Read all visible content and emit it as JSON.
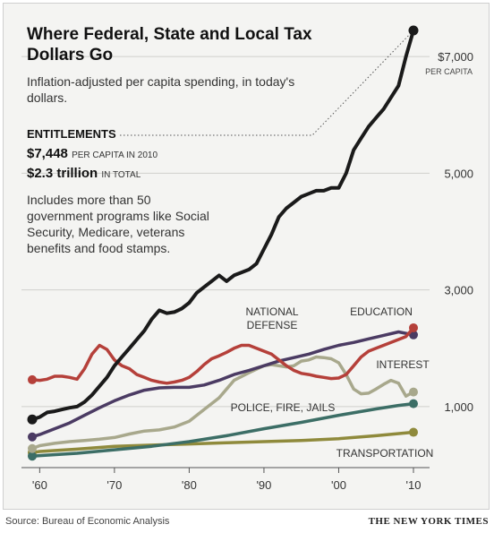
{
  "header": {
    "title": "Where Federal, State and Local Tax Dollars Go",
    "subtitle": "Inflation-adjusted per capita spending, in today's dollars."
  },
  "entitlements": {
    "label": "ENTITLEMENTS",
    "per_capita_value": "$7,448",
    "per_capita_note": "PER CAPITA IN 2010",
    "total_value": "$2.3 trillion",
    "total_note": "IN TOTAL",
    "description": "Includes more than 50 government programs like Social Security, Medicare, veterans benefits and food stamps."
  },
  "footer": {
    "source": "Source: Bureau of Economic Analysis",
    "credit": "THE NEW YORK TIMES"
  },
  "chart_data": {
    "type": "line",
    "title": "Where Federal, State and Local Tax Dollars Go",
    "subtitle": "Inflation-adjusted per capita spending, in today's dollars.",
    "xlim": [
      1957,
      2012
    ],
    "ylim": [
      0,
      7448
    ],
    "x_ticks": [
      1960,
      1970,
      1980,
      1990,
      2000,
      2010
    ],
    "x_tick_labels": [
      "'60",
      "'70",
      "'80",
      "'90",
      "'00",
      "'10"
    ],
    "y_ticks": [
      1000,
      3000,
      5000,
      7000
    ],
    "y_tick_labels": [
      "1,000",
      "3,000",
      "5,000",
      "$7,000"
    ],
    "y_unit_label": "PER CAPITA",
    "grid": "horizontal",
    "series": [
      {
        "name": "ENTITLEMENTS",
        "color": "#1a1a1a",
        "x": [
          1959,
          1960,
          1961,
          1962,
          1963,
          1964,
          1965,
          1966,
          1967,
          1968,
          1969,
          1970,
          1971,
          1972,
          1973,
          1974,
          1975,
          1976,
          1977,
          1978,
          1979,
          1980,
          1981,
          1982,
          1983,
          1984,
          1985,
          1986,
          1987,
          1988,
          1989,
          1990,
          1991,
          1992,
          1993,
          1994,
          1995,
          1996,
          1997,
          1998,
          1999,
          2000,
          2001,
          2002,
          2003,
          2004,
          2005,
          2006,
          2007,
          2008,
          2009,
          2010
        ],
        "values": [
          780,
          820,
          900,
          920,
          950,
          980,
          1000,
          1080,
          1200,
          1350,
          1500,
          1700,
          1850,
          2000,
          2150,
          2300,
          2500,
          2650,
          2600,
          2620,
          2680,
          2780,
          2950,
          3050,
          3150,
          3250,
          3150,
          3250,
          3300,
          3350,
          3450,
          3700,
          3950,
          4250,
          4400,
          4500,
          4600,
          4650,
          4700,
          4700,
          4750,
          4750,
          5000,
          5400,
          5600,
          5800,
          5950,
          6100,
          6300,
          6500,
          7000,
          7448
        ]
      },
      {
        "name": "NATIONAL DEFENSE",
        "color": "#b5403a",
        "x": [
          1959,
          1960,
          1961,
          1962,
          1963,
          1964,
          1965,
          1966,
          1967,
          1968,
          1969,
          1970,
          1971,
          1972,
          1973,
          1974,
          1975,
          1976,
          1977,
          1978,
          1979,
          1980,
          1981,
          1982,
          1983,
          1984,
          1985,
          1986,
          1987,
          1988,
          1989,
          1990,
          1991,
          1992,
          1993,
          1994,
          1995,
          1996,
          1997,
          1998,
          1999,
          2000,
          2001,
          2002,
          2003,
          2004,
          2005,
          2006,
          2007,
          2008,
          2009,
          2010
        ],
        "values": [
          1460,
          1450,
          1470,
          1520,
          1520,
          1500,
          1470,
          1650,
          1900,
          2050,
          1980,
          1800,
          1700,
          1650,
          1550,
          1500,
          1450,
          1420,
          1400,
          1420,
          1450,
          1500,
          1600,
          1720,
          1820,
          1870,
          1930,
          2000,
          2050,
          2050,
          2000,
          1950,
          1900,
          1800,
          1700,
          1620,
          1570,
          1550,
          1520,
          1500,
          1480,
          1490,
          1550,
          1700,
          1850,
          1950,
          2000,
          2050,
          2100,
          2150,
          2200,
          2350
        ]
      },
      {
        "name": "EDUCATION",
        "color": "#4b3b63",
        "x": [
          1959,
          1960,
          1962,
          1964,
          1966,
          1968,
          1970,
          1972,
          1974,
          1976,
          1978,
          1980,
          1982,
          1984,
          1986,
          1988,
          1990,
          1992,
          1994,
          1996,
          1998,
          2000,
          2002,
          2004,
          2006,
          2008,
          2010
        ],
        "values": [
          480,
          520,
          620,
          720,
          850,
          980,
          1100,
          1200,
          1280,
          1320,
          1330,
          1330,
          1370,
          1450,
          1550,
          1620,
          1700,
          1780,
          1840,
          1900,
          1980,
          2050,
          2100,
          2160,
          2220,
          2280,
          2230
        ]
      },
      {
        "name": "INTEREST",
        "color": "#a8a88c",
        "x": [
          1959,
          1960,
          1962,
          1964,
          1966,
          1968,
          1970,
          1972,
          1974,
          1976,
          1978,
          1980,
          1982,
          1984,
          1985,
          1986,
          1988,
          1990,
          1991,
          1992,
          1993,
          1994,
          1995,
          1996,
          1997,
          1998,
          1999,
          2000,
          2001,
          2002,
          2003,
          2004,
          2005,
          2006,
          2007,
          2008,
          2009,
          2010
        ],
        "values": [
          280,
          330,
          370,
          400,
          420,
          440,
          470,
          530,
          580,
          600,
          650,
          750,
          950,
          1150,
          1300,
          1450,
          1580,
          1700,
          1720,
          1700,
          1680,
          1700,
          1780,
          1800,
          1850,
          1840,
          1820,
          1750,
          1550,
          1300,
          1220,
          1230,
          1300,
          1380,
          1450,
          1400,
          1180,
          1250
        ]
      },
      {
        "name": "POLICE, FIRE, JAILS",
        "color": "#3c6e66",
        "x": [
          1959,
          1960,
          1965,
          1970,
          1975,
          1980,
          1985,
          1990,
          1995,
          2000,
          2005,
          2008,
          2010
        ],
        "values": [
          150,
          160,
          200,
          260,
          320,
          400,
          500,
          620,
          730,
          850,
          960,
          1020,
          1050
        ]
      },
      {
        "name": "TRANSPORTATION",
        "color": "#8f8a3c",
        "x": [
          1959,
          1960,
          1965,
          1970,
          1975,
          1980,
          1985,
          1990,
          1995,
          2000,
          2005,
          2010
        ],
        "values": [
          210,
          230,
          270,
          320,
          340,
          360,
          380,
          400,
          420,
          450,
          500,
          560
        ]
      }
    ],
    "annotations": [
      "NATIONAL DEFENSE",
      "EDUCATION",
      "INTEREST",
      "POLICE, FIRE, JAILS",
      "TRANSPORTATION"
    ]
  }
}
